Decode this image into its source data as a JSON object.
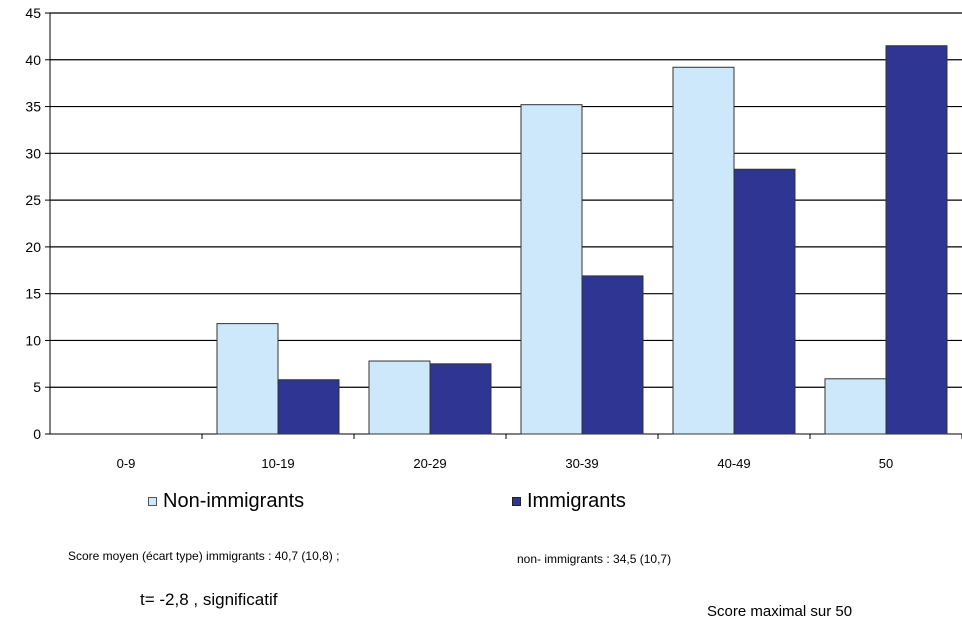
{
  "chart_data": {
    "type": "bar",
    "categories": [
      "0-9",
      "10-19",
      "20-29",
      "30-39",
      "40-49",
      "50"
    ],
    "series": [
      {
        "name": "Non-immigrants",
        "color": "#cce8fa",
        "values": [
          0,
          11.8,
          7.8,
          35.2,
          39.2,
          5.9
        ]
      },
      {
        "name": "Immigrants",
        "color": "#2e3592",
        "values": [
          0,
          5.8,
          7.5,
          16.9,
          28.3,
          41.5
        ]
      }
    ],
    "ylim": [
      0,
      45
    ],
    "yticks": [
      0,
      5,
      10,
      15,
      20,
      25,
      30,
      35,
      40,
      45
    ],
    "grid": true,
    "legend_position": "bottom"
  },
  "legend": {
    "nonimmigrants": "Non-immigrants",
    "immigrants": "Immigrants"
  },
  "notes": {
    "score_immigrants": "Score moyen (écart type)  immigrants : 40,7 (10,8) ;",
    "score_nonimmigrants": "non- immigrants   : 34,5 (10,7)",
    "t_test": "t= -2,8 , significatif",
    "max_score": "Score maximal sur 50"
  }
}
